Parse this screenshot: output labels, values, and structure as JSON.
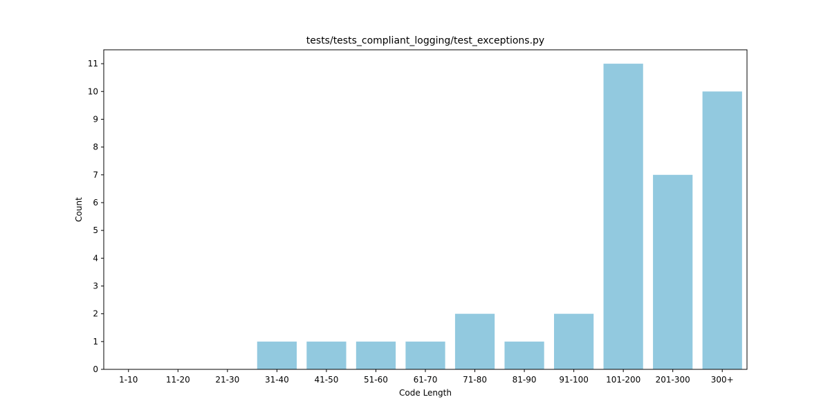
{
  "chart_data": {
    "type": "bar",
    "title": "tests/tests_compliant_logging/test_exceptions.py",
    "xlabel": "Code Length",
    "ylabel": "Count",
    "categories": [
      "1-10",
      "11-20",
      "21-30",
      "31-40",
      "41-50",
      "51-60",
      "61-70",
      "71-80",
      "81-90",
      "91-100",
      "101-200",
      "201-300",
      "300+"
    ],
    "values": [
      0,
      0,
      0,
      1,
      1,
      1,
      1,
      2,
      1,
      2,
      11,
      7,
      10
    ],
    "ylim": [
      0,
      11.5
    ],
    "yticks": [
      0,
      1,
      2,
      3,
      4,
      5,
      6,
      7,
      8,
      9,
      10,
      11
    ],
    "bar_color": "#92c9df",
    "grid": false
  }
}
